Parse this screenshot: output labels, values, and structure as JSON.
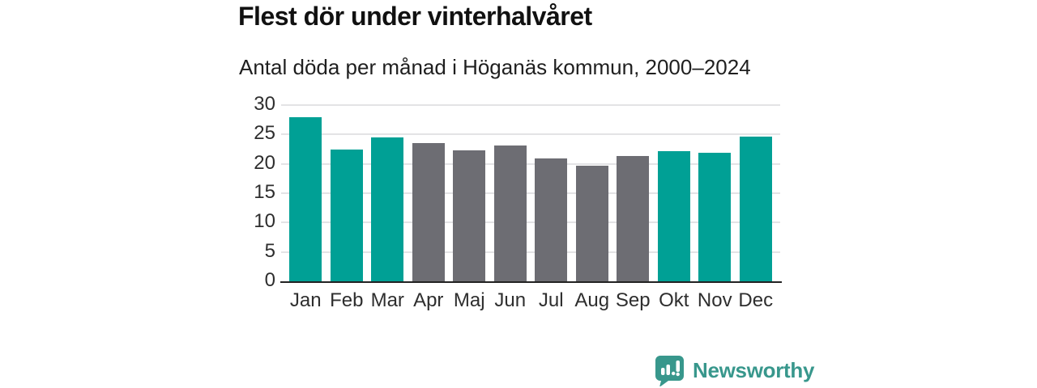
{
  "header": {
    "title": "Flest dör under vinterhalvåret",
    "subtitle": "Antal döda per månad i Höganäs kommun, 2000–2024"
  },
  "chart_data": {
    "type": "bar",
    "title": "Flest dör under vinterhalvåret",
    "subtitle": "Antal döda per månad i Höganäs kommun, 2000–2024",
    "categories": [
      "Jan",
      "Feb",
      "Mar",
      "Apr",
      "Maj",
      "Jun",
      "Jul",
      "Aug",
      "Sep",
      "Okt",
      "Nov",
      "Dec"
    ],
    "values": [
      27.9,
      22.4,
      24.5,
      23.5,
      22.3,
      23.1,
      20.9,
      19.7,
      21.4,
      22.1,
      21.9,
      24.7
    ],
    "bar_colors": [
      "#00a095",
      "#00a095",
      "#00a095",
      "#6d6d73",
      "#6d6d73",
      "#6d6d73",
      "#6d6d73",
      "#6d6d73",
      "#6d6d73",
      "#00a095",
      "#00a095",
      "#00a095"
    ],
    "xlabel": "",
    "ylabel": "",
    "ylim": [
      0,
      30
    ],
    "yticks": [
      0,
      5,
      10,
      15,
      20,
      25,
      30
    ],
    "grid": "horizontal",
    "legend": "none"
  },
  "colors": {
    "winter_bar": "#00a095",
    "summer_bar": "#6d6d73",
    "gridline": "#e3e3e5",
    "axis_line": "#222222",
    "tick_text": "#2e2e2e",
    "title_text": "#111111",
    "brand_teal": "#38978c"
  },
  "footer": {
    "brand": "Newsworthy"
  }
}
